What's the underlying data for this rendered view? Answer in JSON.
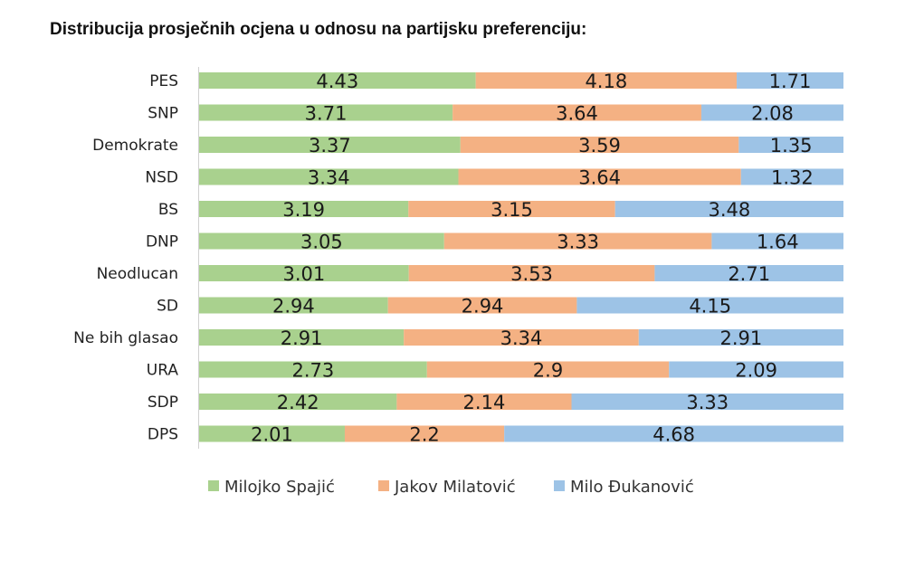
{
  "chart_data": {
    "type": "bar",
    "orientation": "horizontal",
    "stacked": "100%",
    "title": "Distribucija prosječnih ocjena u odnosu na partijsku preferenciju:",
    "categories": [
      "PES",
      "SNP",
      "Demokrate",
      "NSD",
      "BS",
      "DNP",
      "Neodlucan",
      "SD",
      "Ne bih glasao",
      "URA",
      "SDP",
      "DPS"
    ],
    "series": [
      {
        "name": "Milojko Spajić",
        "color": "#a9d18e",
        "values": [
          4.43,
          3.71,
          3.37,
          3.34,
          3.19,
          3.05,
          3.01,
          2.94,
          2.91,
          2.73,
          2.42,
          2.01
        ],
        "labels": [
          "4.43",
          "3.71",
          "3.37",
          "3.34",
          "3.19",
          "3.05",
          "3.01",
          "2.94",
          "2.91",
          "2.73",
          "2.42",
          "2.01"
        ]
      },
      {
        "name": "Jakov Milatović",
        "color": "#f4b183",
        "values": [
          4.18,
          3.64,
          3.59,
          3.64,
          3.15,
          3.33,
          3.53,
          2.94,
          3.34,
          2.9,
          2.14,
          2.2
        ],
        "labels": [
          "4.18",
          "3.64",
          "3.59",
          "3.64",
          "3.15",
          "3.33",
          "3.53",
          "2.94",
          "3.34",
          "2.9",
          "2.14",
          "2.2"
        ]
      },
      {
        "name": "Milo Đukanović",
        "color": "#9dc3e6",
        "values": [
          1.71,
          2.08,
          1.35,
          1.32,
          3.48,
          1.64,
          2.71,
          4.15,
          2.91,
          2.09,
          3.33,
          4.68
        ],
        "labels": [
          "1.71",
          "2.08",
          "1.35",
          "1.32",
          "3.48",
          "1.64",
          "2.71",
          "4.15",
          "2.91",
          "2.09",
          "3.33",
          "4.68"
        ]
      }
    ],
    "legend_position": "bottom",
    "grid": false
  }
}
